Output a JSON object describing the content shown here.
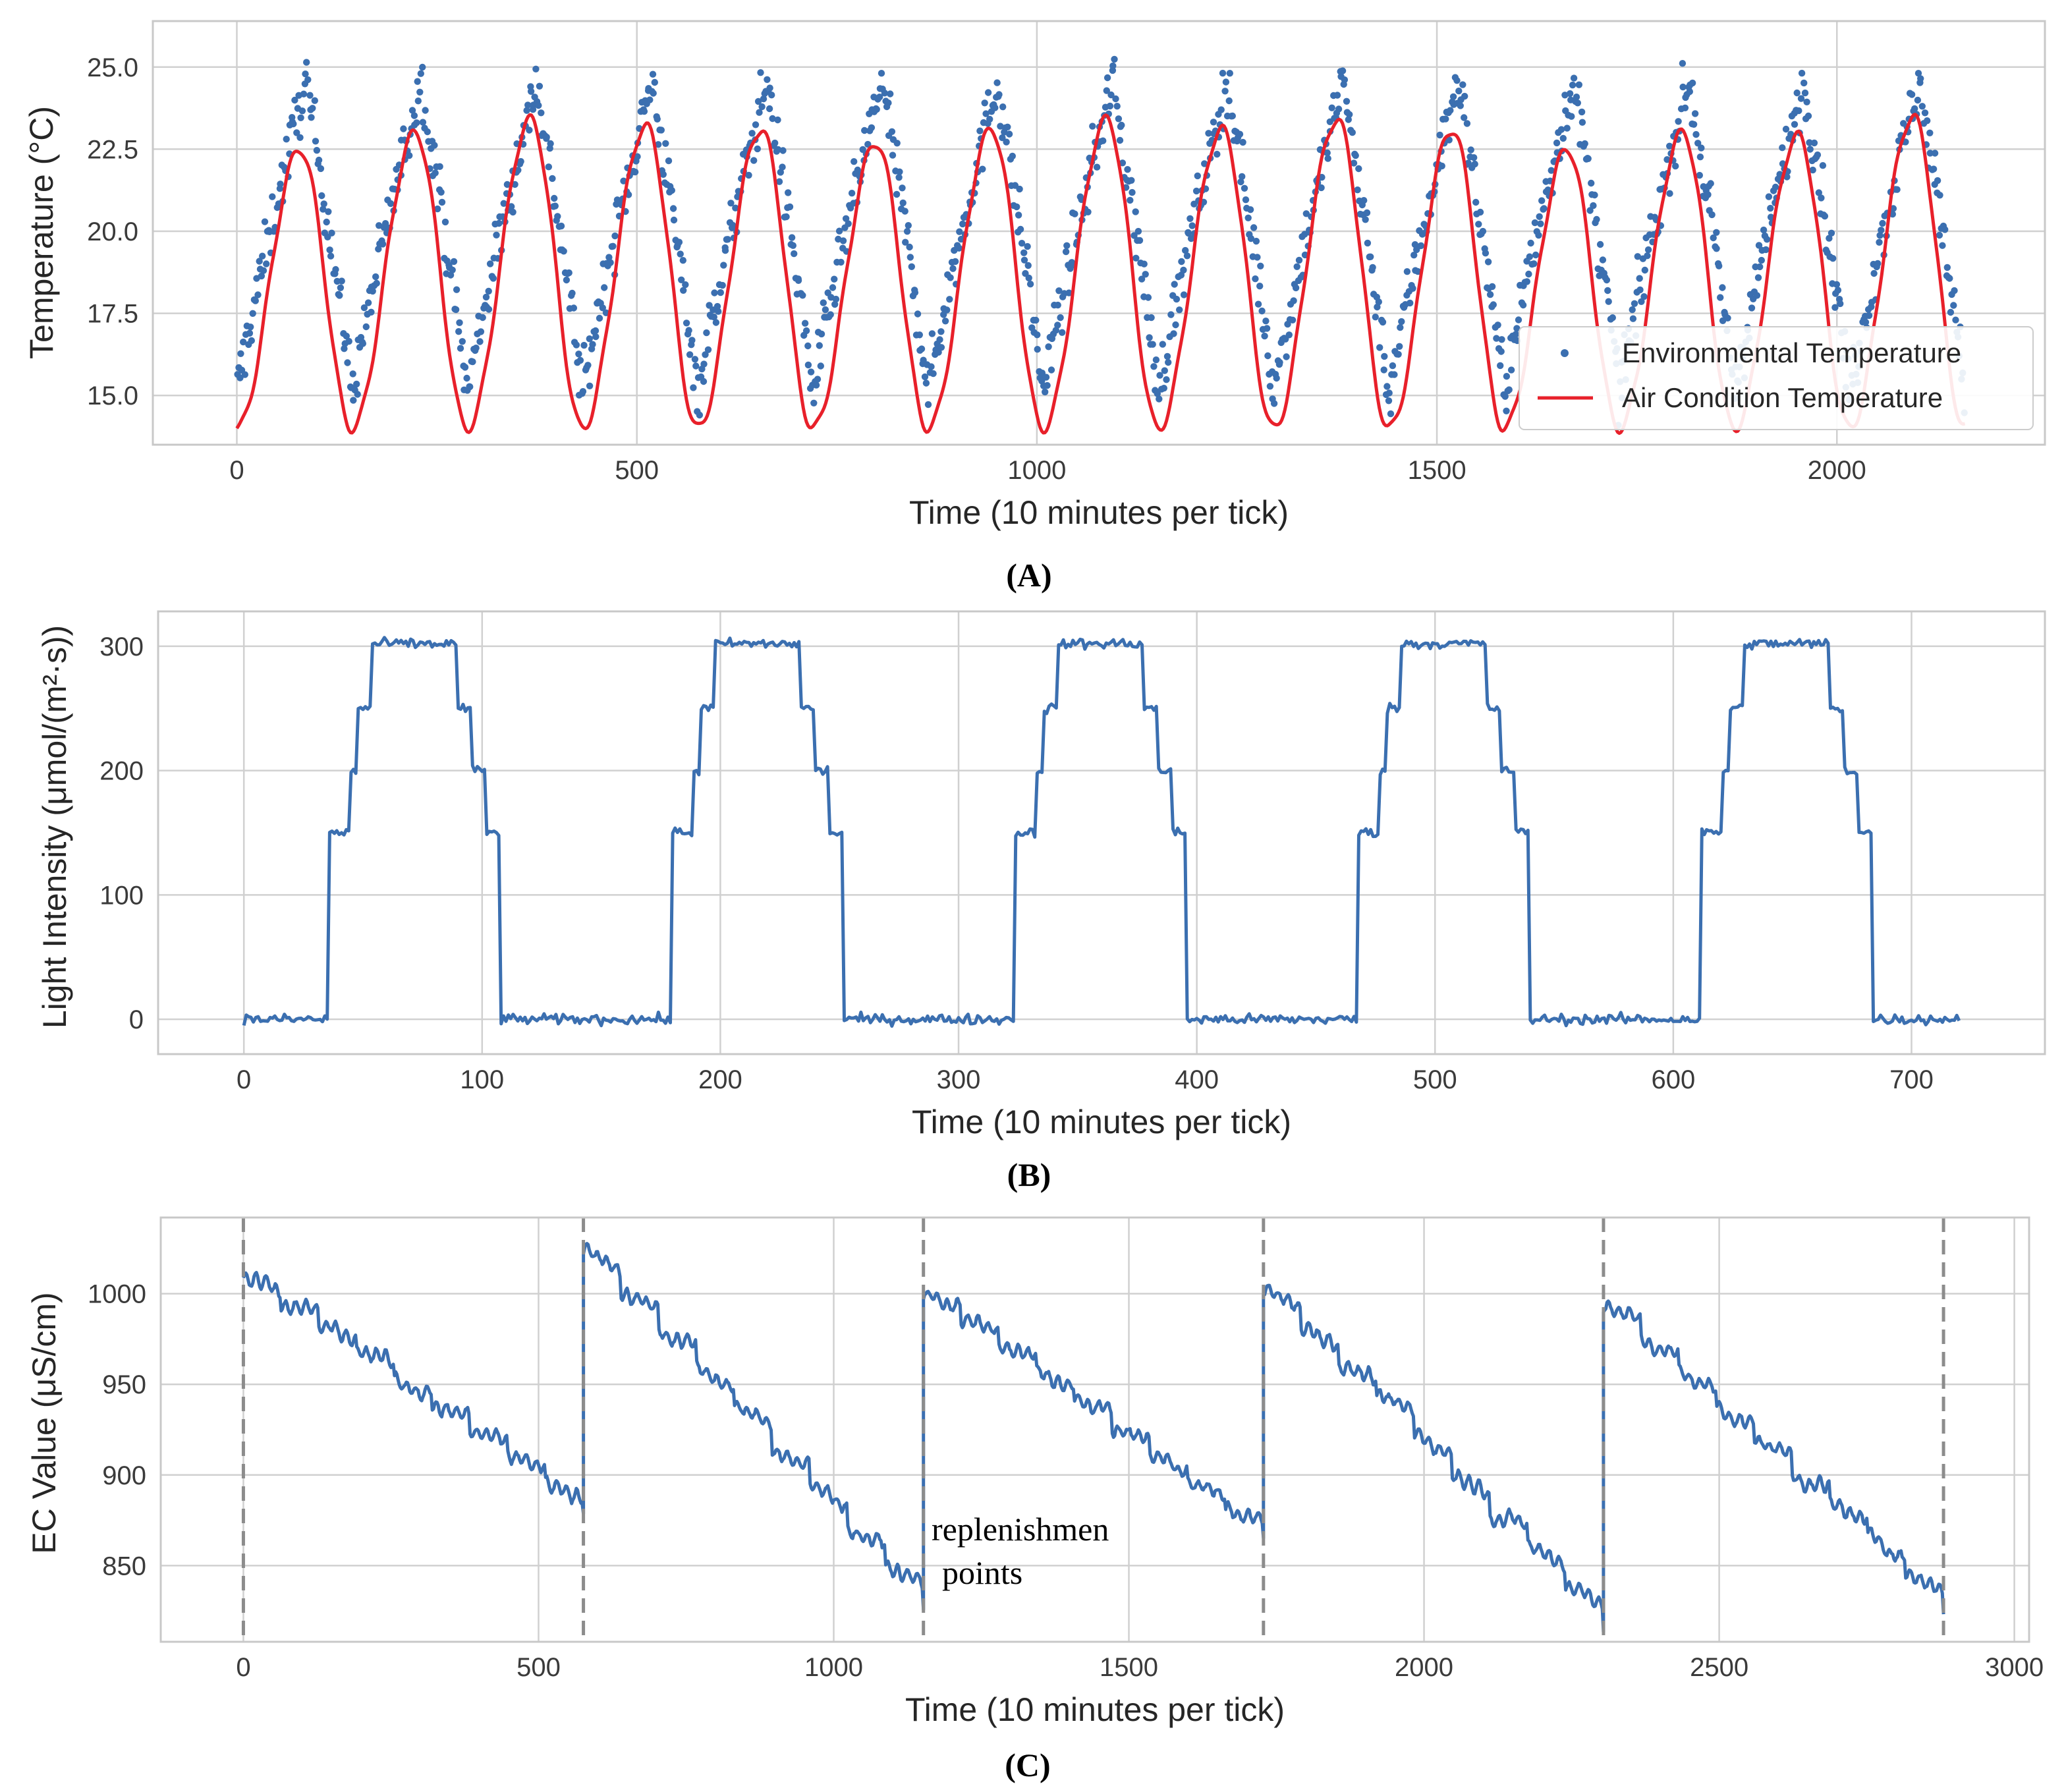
{
  "colors": {
    "env": "#3b6fb0",
    "air": "#e8202a",
    "light": "#3b6fb0",
    "ec": "#3b6fb0",
    "grid": "#d0d0d0",
    "frame": "#c8c8c8",
    "replenish": "#8c8c8c"
  },
  "chart_data": [
    {
      "id": "A",
      "type": "line",
      "panel_label": "(A)",
      "xlabel": "Time (10 minutes per tick)",
      "ylabel": "Temperature (°C)",
      "xlim": [
        -105,
        2260
      ],
      "ylim": [
        13.5,
        26.4
      ],
      "xticks": [
        0,
        500,
        1000,
        1500,
        2000
      ],
      "yticks": [
        15.0,
        17.5,
        20.0,
        22.5,
        25.0
      ],
      "ytick_labels": [
        "15.0",
        "17.5",
        "20.0",
        "22.5",
        "25.0"
      ],
      "legend": {
        "placement": "lower-right",
        "entries": [
          "Environmental Temperature",
          "Air Condition Temperature"
        ]
      },
      "series": [
        {
          "name": "Environmental Temperature",
          "kind": "scatter",
          "period": 144,
          "points": 1440,
          "base": 15.0,
          "peak": 24.6,
          "noise": 1.0,
          "x_range": [
            0,
            2160
          ]
        },
        {
          "name": "Air Condition Temperature",
          "kind": "line",
          "period": 144,
          "base": 14.0,
          "peak": 23.0,
          "cycle_peaks": [
            22.5,
            23.0,
            23.4,
            23.2,
            23.1,
            22.7,
            23.1,
            23.4,
            23.1,
            23.4,
            23.1,
            22.5,
            23.0,
            22.9,
            23.5
          ],
          "x_range": [
            0,
            2160
          ]
        }
      ]
    },
    {
      "id": "B",
      "type": "line",
      "panel_label": "(B)",
      "xlabel": "Time (10 minutes per tick)",
      "ylabel": "Light Intensity (μmol/(m²·s))",
      "xlim": [
        -36,
        756
      ],
      "ylim": [
        -28,
        328
      ],
      "xticks": [
        0,
        100,
        200,
        300,
        400,
        500,
        600,
        700
      ],
      "yticks": [
        0,
        100,
        200,
        300
      ],
      "series": [
        {
          "name": "Light Intensity",
          "period": 144,
          "x_range": [
            0,
            720
          ],
          "steps": [
            {
              "from": 0,
              "to": 36,
              "value": 0
            },
            {
              "from": 36,
              "to": 45,
              "value": 150
            },
            {
              "from": 45,
              "to": 48,
              "value": 200
            },
            {
              "from": 48,
              "to": 54,
              "value": 250
            },
            {
              "from": 54,
              "to": 90,
              "value": 302
            },
            {
              "from": 90,
              "to": 96,
              "value": 250
            },
            {
              "from": 96,
              "to": 102,
              "value": 200
            },
            {
              "from": 102,
              "to": 108,
              "value": 150
            },
            {
              "from": 108,
              "to": 144,
              "value": 0
            }
          ],
          "noise": 4
        }
      ]
    },
    {
      "id": "C",
      "type": "line",
      "panel_label": "(C)",
      "xlabel": "Time (10 minutes per tick)",
      "ylabel": "EC Value (μS/cm)",
      "xlim": [
        -140,
        3025
      ],
      "ylim": [
        808,
        1042
      ],
      "xticks": [
        0,
        500,
        1000,
        1500,
        2000,
        2500,
        3000
      ],
      "yticks": [
        850,
        900,
        950,
        1000
      ],
      "annotation": {
        "text_line1": "replenishmen",
        "text_line2": "points",
        "x": 1150,
        "y": 855
      },
      "replenishment_x": [
        0,
        576,
        1152,
        1728,
        2304,
        2880
      ],
      "series": [
        {
          "name": "EC Value",
          "x_range": [
            0,
            2880
          ],
          "segments": [
            {
              "from": 0,
              "to": 576,
              "start": 1010,
              "end": 882
            },
            {
              "from": 576,
              "to": 1152,
              "start": 1024,
              "end": 828
            },
            {
              "from": 1152,
              "to": 1728,
              "start": 1000,
              "end": 866
            },
            {
              "from": 1728,
              "to": 2304,
              "start": 1003,
              "end": 820
            },
            {
              "from": 2304,
              "to": 2880,
              "start": 992,
              "end": 828
            }
          ]
        }
      ]
    }
  ]
}
